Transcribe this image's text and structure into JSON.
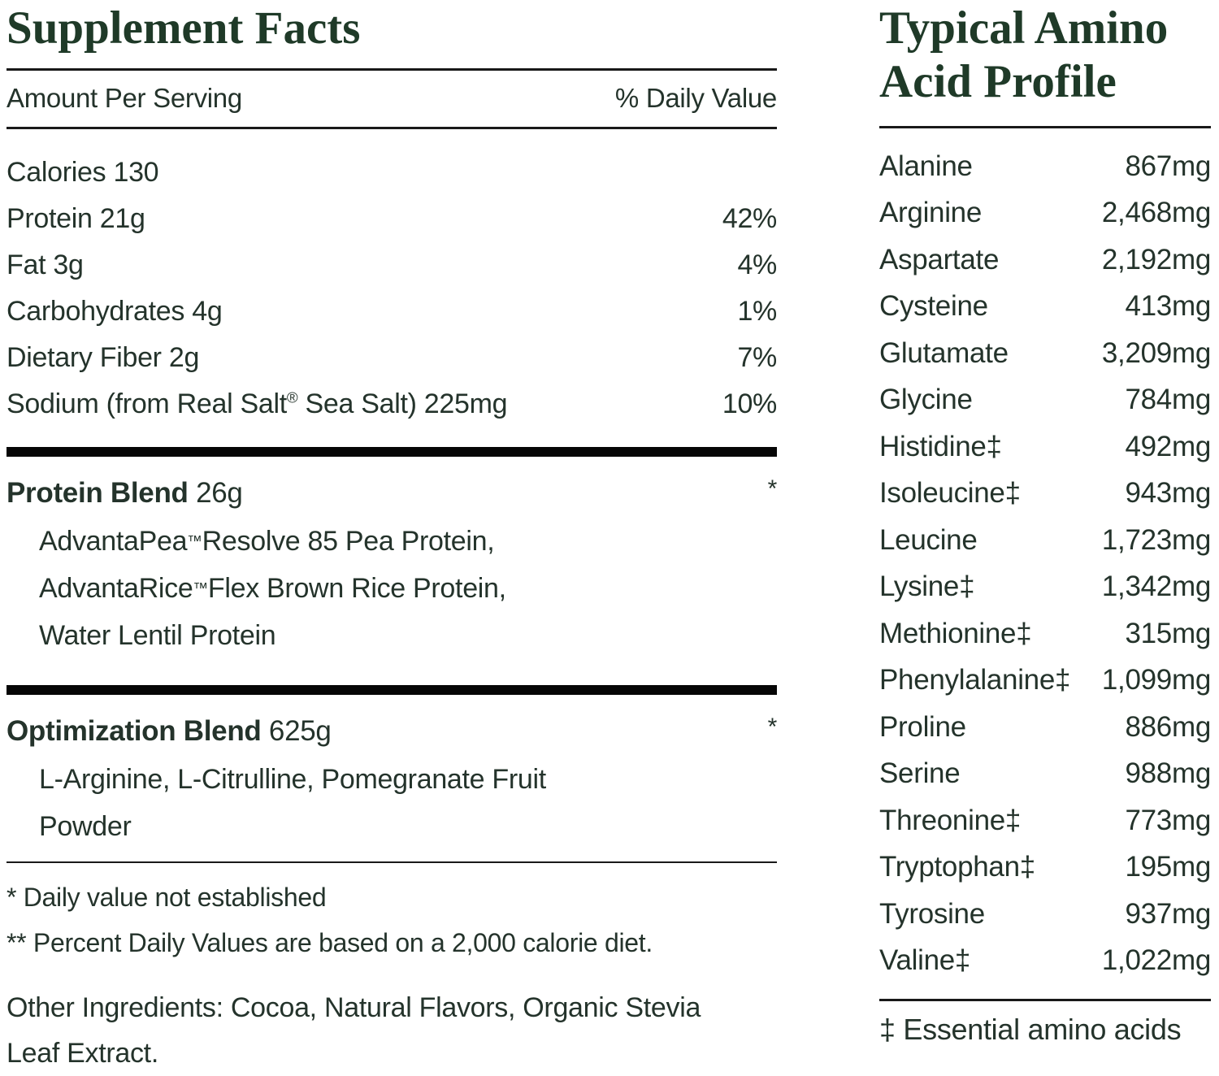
{
  "colors": {
    "background": "#ffffff",
    "heading_green": "#1f3a28",
    "body_text": "#24332b",
    "rule": "#191919",
    "section_bar": "#060606"
  },
  "supplement_facts": {
    "title": "Supplement Facts",
    "column_headers": {
      "left": "Amount Per Serving",
      "right": "% Daily Value"
    },
    "nutrients": [
      {
        "label": "Calories 130",
        "dv": ""
      },
      {
        "label": "Protein 21g",
        "dv": "42%"
      },
      {
        "label": "Fat 3g",
        "dv": "4%"
      },
      {
        "label": "Carbohydrates 4g",
        "dv": "1%"
      },
      {
        "label": "Dietary Fiber 2g",
        "dv": "7%"
      },
      {
        "label": "Sodium (from Real Salt® Sea Salt) 225mg",
        "dv": "10%"
      }
    ],
    "blends": [
      {
        "name": "Protein Blend",
        "amount": "26g",
        "dv": "*",
        "ingredients": [
          "AdvantaPea™ Resolve 85 Pea Protein,",
          "AdvantaRice™ Flex Brown Rice Protein,",
          "Water Lentil Protein"
        ]
      },
      {
        "name": "Optimization Blend",
        "amount": "625g",
        "dv": "*",
        "ingredients": [
          "L-Arginine, L-Citrulline, Pomegranate Fruit",
          "Powder"
        ]
      }
    ],
    "footnotes": [
      "* Daily value not established",
      "** Percent Daily Values are based on a 2,000 calorie diet."
    ],
    "other_ingredients": "Other Ingredients: Cocoa, Natural Flavors, Organic Stevia Leaf Extract."
  },
  "amino_profile": {
    "title_line1": "Typical Amino",
    "title_line2": "Acid Profile",
    "rows": [
      {
        "name": "Alanine",
        "amount": "867mg"
      },
      {
        "name": "Arginine",
        "amount": "2,468mg"
      },
      {
        "name": "Aspartate",
        "amount": "2,192mg"
      },
      {
        "name": "Cysteine",
        "amount": "413mg"
      },
      {
        "name": "Glutamate",
        "amount": "3,209mg"
      },
      {
        "name": "Glycine",
        "amount": "784mg"
      },
      {
        "name": "Histidine‡",
        "amount": "492mg"
      },
      {
        "name": "Isoleucine‡",
        "amount": "943mg"
      },
      {
        "name": "Leucine",
        "amount": "1,723mg"
      },
      {
        "name": "Lysine‡",
        "amount": "1,342mg"
      },
      {
        "name": "Methionine‡",
        "amount": "315mg"
      },
      {
        "name": "Phenylalanine‡",
        "amount": "1,099mg"
      },
      {
        "name": "Proline",
        "amount": "886mg"
      },
      {
        "name": "Serine",
        "amount": "988mg"
      },
      {
        "name": "Threonine‡",
        "amount": "773mg"
      },
      {
        "name": "Tryptophan‡",
        "amount": "195mg"
      },
      {
        "name": "Tyrosine",
        "amount": "937mg"
      },
      {
        "name": "Valine‡",
        "amount": "1,022mg"
      }
    ],
    "footnote": "‡ Essential amino acids"
  }
}
